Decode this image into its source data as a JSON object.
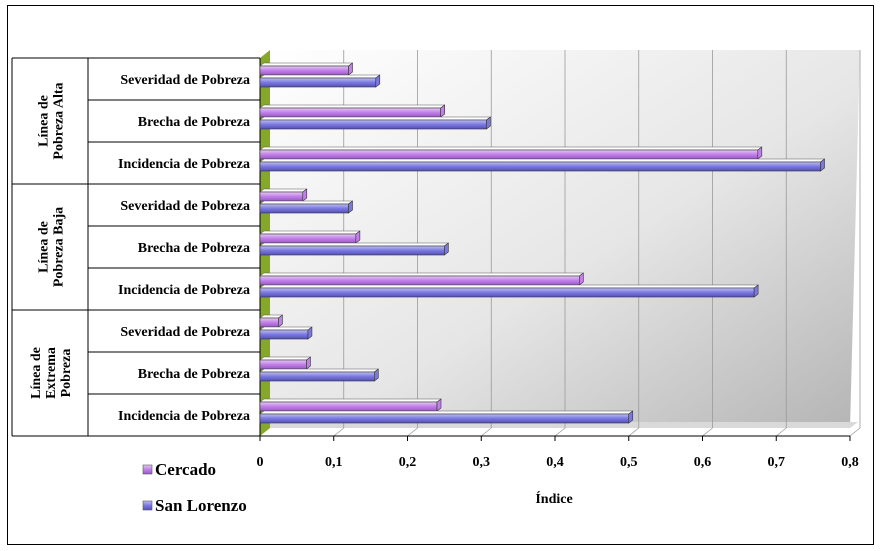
{
  "chart_data": {
    "type": "bar",
    "orientation": "horizontal",
    "xlabel": "Índice",
    "xlim": [
      0,
      0.8
    ],
    "xticks": [
      "0",
      "0,1",
      "0,2",
      "0,3",
      "0,4",
      "0,5",
      "0,6",
      "0,7",
      "0,8"
    ],
    "grid": true,
    "legend_position": "bottom-left",
    "groups": [
      {
        "label": "Línea de Pobreza Alta",
        "label_lines": [
          "Línea de",
          "Pobreza Alta"
        ],
        "categories": [
          "Severidad de Pobreza",
          "Brecha de Pobreza",
          "Incidencia de Pobreza"
        ]
      },
      {
        "label": "Línea de Pobreza Baja",
        "label_lines": [
          "Línea de",
          "Pobreza Baja"
        ],
        "categories": [
          "Severidad de Pobreza",
          "Brecha de Pobreza",
          "Incidencia de Pobreza"
        ]
      },
      {
        "label": "Línea de Extrema Pobreza",
        "label_lines": [
          "Línea de",
          "Extrema",
          "Pobreza"
        ],
        "categories": [
          "Severidad de Pobreza",
          "Brecha de Pobreza",
          "Incidencia de Pobreza"
        ]
      }
    ],
    "series": [
      {
        "name": "Cercado",
        "color": "#c080e8",
        "values": [
          0.12,
          0.245,
          0.675,
          0.058,
          0.13,
          0.433,
          0.025,
          0.063,
          0.24
        ]
      },
      {
        "name": "San Lorenzo",
        "color": "#7a78e0",
        "values": [
          0.157,
          0.307,
          0.76,
          0.12,
          0.25,
          0.67,
          0.065,
          0.155,
          0.5
        ]
      }
    ]
  }
}
